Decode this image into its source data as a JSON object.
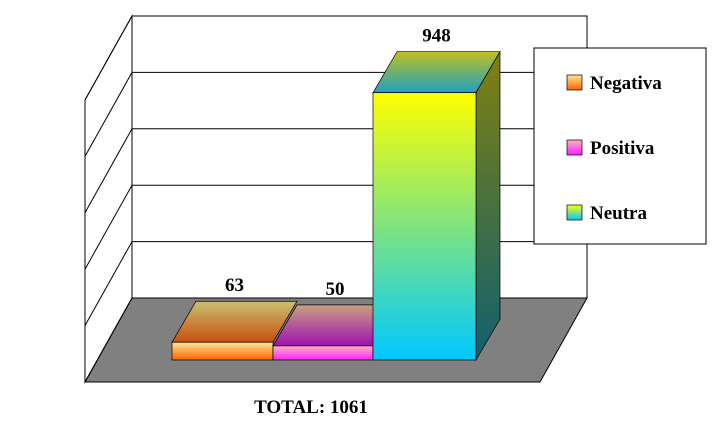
{
  "chart_data": {
    "type": "bar",
    "style": "3d",
    "categories": [
      "Negativa",
      "Positiva",
      "Neutra"
    ],
    "values": [
      63,
      50,
      948
    ],
    "data_labels": [
      "63",
      "50",
      "948"
    ],
    "xlabel": "TOTAL: 1061",
    "ylabel": "",
    "ylim": [
      0,
      1000
    ],
    "gridline_step": 200,
    "grid": true,
    "axis_tick_labels_shown": false,
    "legend": {
      "placement": "right",
      "entries": [
        "Negativa",
        "Positiva",
        "Neutra"
      ]
    },
    "colors": {
      "floor": "#808080",
      "Negativa": {
        "light": "#ffe890",
        "dark": "#ff6000",
        "top_back": "#c8c070",
        "top_front": "#c85010"
      },
      "Positiva": {
        "light": "#ffb0c8",
        "dark": "#ff20ff",
        "top_back": "#c8a080",
        "top_front": "#a010b0"
      },
      "Neutra": {
        "light": "#ffff00",
        "dark": "#00c8ff",
        "top_back": "#c0c020",
        "top_front": "#20a0c0",
        "side_top": "#808010",
        "side_bottom": "#106070"
      }
    }
  }
}
